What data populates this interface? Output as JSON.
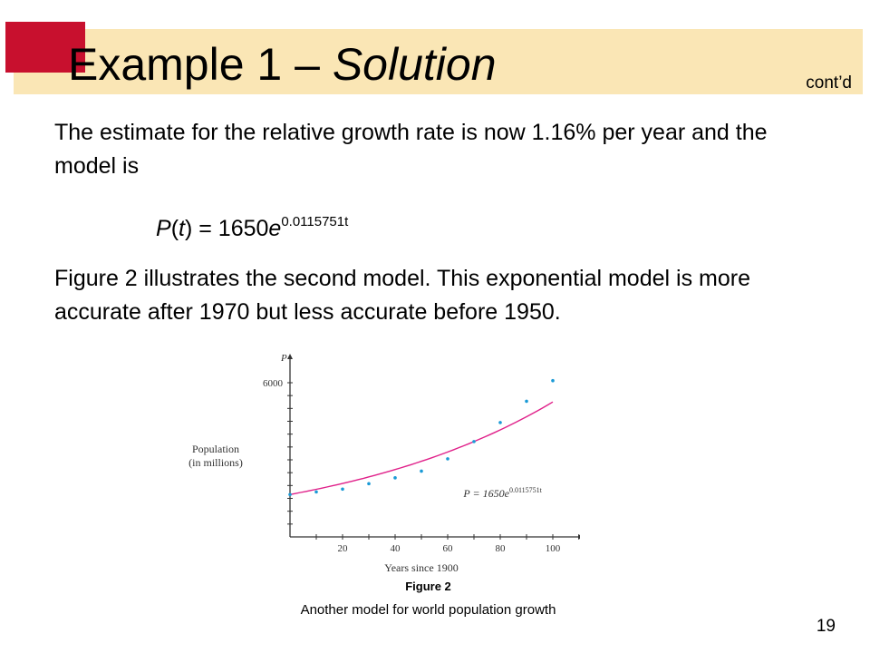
{
  "slide": {
    "title_main": "Example 1 – ",
    "title_italic": "Solution",
    "contd": "cont’d",
    "paragraph_1": "The estimate for the relative growth rate is now 1.16% per year and the model is",
    "formula": {
      "p": "P",
      "open": "(",
      "t": "t",
      "close": ") = 1650",
      "e": "e",
      "exponent": "0.0115751t"
    },
    "paragraph_2": "Figure 2 illustrates the second model. This exponential model is more accurate after 1970 but less accurate before 1950.",
    "figure_caption": "Figure 2",
    "figure_subcaption": "Another model for world population growth",
    "page_number": "19",
    "colors": {
      "title_band": "#fae6b5",
      "accent": "#c8102e",
      "curve": "#e0218a",
      "points": "#1a9ad6"
    }
  },
  "chart_data": {
    "type": "scatter",
    "xlabel": "Years since 1900",
    "ylabel": "Population\n(in millions)",
    "y_axis_symbol": "P",
    "x_ticks": [
      20,
      40,
      60,
      80,
      100
    ],
    "y_ticks": [
      6000
    ],
    "xlim": [
      0,
      105
    ],
    "ylim": [
      0,
      6500
    ],
    "points": {
      "x": [
        0,
        10,
        20,
        30,
        40,
        50,
        60,
        70,
        80,
        90,
        100
      ],
      "y": [
        1650,
        1750,
        1860,
        2070,
        2300,
        2560,
        3040,
        3710,
        4450,
        5280,
        6080
      ]
    },
    "model": {
      "label_prefix": "P = 1650e",
      "label_exponent": "0.0115751t",
      "a": 1650,
      "k": 0.0115751,
      "x_range": [
        0,
        100
      ]
    }
  }
}
